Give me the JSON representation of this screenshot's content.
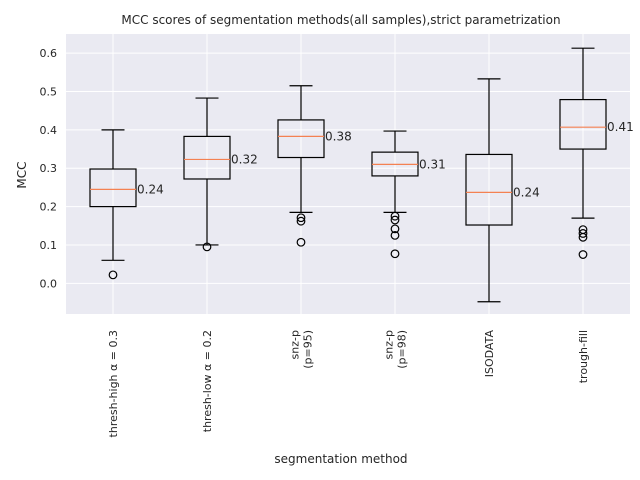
{
  "chart_data": {
    "type": "box",
    "title": "MCC scores of segmentation methods(all samples),strict parametrization",
    "xlabel": "segmentation method",
    "ylabel": "MCC",
    "ylim": [
      -0.08,
      0.65
    ],
    "yticks": [
      0.0,
      0.1,
      0.2,
      0.3,
      0.4,
      0.5,
      0.6
    ],
    "ytick_labels": [
      "0.0",
      "0.1",
      "0.2",
      "0.3",
      "0.4",
      "0.5",
      "0.6"
    ],
    "grid": true,
    "categories": [
      [
        "thresh-high α = 0.3"
      ],
      [
        "thresh-low α = 0.2"
      ],
      [
        "snz-p",
        "(p=95)"
      ],
      [
        "snz-p",
        "(p=98)"
      ],
      [
        "ISODATA"
      ],
      [
        "trough-fill"
      ]
    ],
    "boxes": [
      {
        "whisker_low": 0.06,
        "q1": 0.2,
        "median": 0.245,
        "q3": 0.298,
        "whisker_high": 0.4,
        "outliers": [
          0.022
        ],
        "median_label": "0.24"
      },
      {
        "whisker_low": 0.1,
        "q1": 0.272,
        "median": 0.323,
        "q3": 0.383,
        "whisker_high": 0.483,
        "outliers": [
          0.095
        ],
        "median_label": "0.32"
      },
      {
        "whisker_low": 0.185,
        "q1": 0.328,
        "median": 0.383,
        "q3": 0.426,
        "whisker_high": 0.515,
        "outliers": [
          0.171,
          0.162,
          0.107
        ],
        "median_label": "0.38"
      },
      {
        "whisker_low": 0.185,
        "q1": 0.28,
        "median": 0.31,
        "q3": 0.342,
        "whisker_high": 0.397,
        "outliers": [
          0.175,
          0.165,
          0.142,
          0.125,
          0.077
        ],
        "median_label": "0.31"
      },
      {
        "whisker_low": -0.048,
        "q1": 0.152,
        "median": 0.237,
        "q3": 0.336,
        "whisker_high": 0.533,
        "outliers": [],
        "median_label": "0.24"
      },
      {
        "whisker_low": 0.17,
        "q1": 0.35,
        "median": 0.407,
        "q3": 0.479,
        "whisker_high": 0.613,
        "outliers": [
          0.14,
          0.13,
          0.12,
          0.075
        ],
        "median_label": "0.41"
      }
    ],
    "colors": {
      "plot_background": "#eaeaf2",
      "grid": "#ffffff",
      "box": "#000000",
      "median": "#f48152",
      "text": "#262626"
    }
  }
}
